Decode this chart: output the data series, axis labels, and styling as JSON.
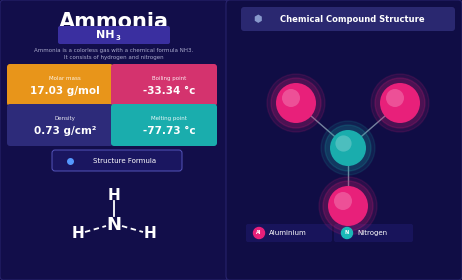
{
  "bg_color": "#0d0a3a",
  "panel_left_color": "#120e4a",
  "panel_right_color": "#100d45",
  "title": "Ammonia",
  "nh3_box_color": "#3a2fa0",
  "description_line1": "Ammonia is a colorless gas with a chemical formula NH3.",
  "description_line2": "It consists of hydrogen and nitrogen",
  "props": [
    {
      "label": "Molar mass",
      "value": "17.03 g/mol",
      "color": "#e8951a"
    },
    {
      "label": "Boiling point",
      "value": "-33.34 °c",
      "color": "#d4336e"
    },
    {
      "label": "Density",
      "value": "0.73 g/cm²",
      "color": "#2d2b7a"
    },
    {
      "label": "Melting point",
      "value": "-77.73 °c",
      "color": "#1aadad"
    }
  ],
  "struct_label": "Structure Formula",
  "chem_title": "Chemical Compound Structure",
  "chem_title_box": "#2a2870",
  "legend": [
    {
      "label": "Aluminium",
      "color": "#e8207a",
      "letter": "Al"
    },
    {
      "label": "Nitrogen",
      "color": "#1ab8b8",
      "letter": "N"
    }
  ],
  "atom_center_color": "#1aadad",
  "atom_outer_color": "#e8207a",
  "bond_color": "#8090a8",
  "title_fontsize": 14,
  "panel_edge_color": "#2a2570"
}
